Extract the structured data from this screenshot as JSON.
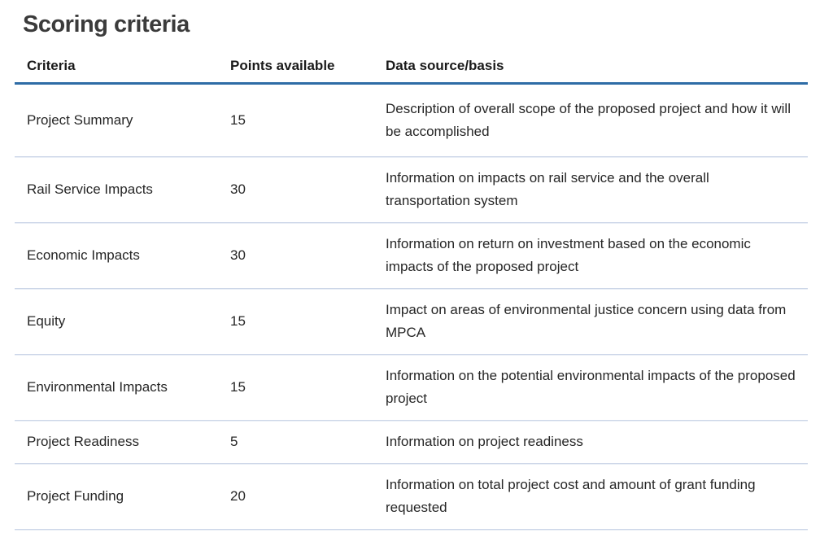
{
  "page": {
    "title": "Scoring criteria"
  },
  "table": {
    "columns": {
      "criteria": "Criteria",
      "points": "Points available",
      "basis": "Data source/basis"
    },
    "rows": [
      {
        "criteria": "Project Summary",
        "points": "15",
        "basis": "Description of overall scope of the proposed project and how it will be accomplished"
      },
      {
        "criteria": "Rail Service Impacts",
        "points": "30",
        "basis": "Information on impacts on rail service and the overall transportation system"
      },
      {
        "criteria": "Economic Impacts",
        "points": "30",
        "basis": "Information on return on investment based on the economic impacts of the proposed project"
      },
      {
        "criteria": "Equity",
        "points": "15",
        "basis": "Impact on areas of environmental justice concern using data from MPCA"
      },
      {
        "criteria": "Environmental Impacts",
        "points": "15",
        "basis": "Information on the potential environmental impacts of the proposed project"
      },
      {
        "criteria": "Project Readiness",
        "points": "5",
        "basis": "Information on project readiness"
      },
      {
        "criteria": "Project Funding",
        "points": "20",
        "basis": "Information on total project cost and amount of grant funding requested"
      }
    ]
  },
  "colors": {
    "header_rule": "#2e6ca6",
    "row_rule": "#ccd6e8",
    "title_text": "#3b3b3b",
    "body_text": "#262626"
  }
}
